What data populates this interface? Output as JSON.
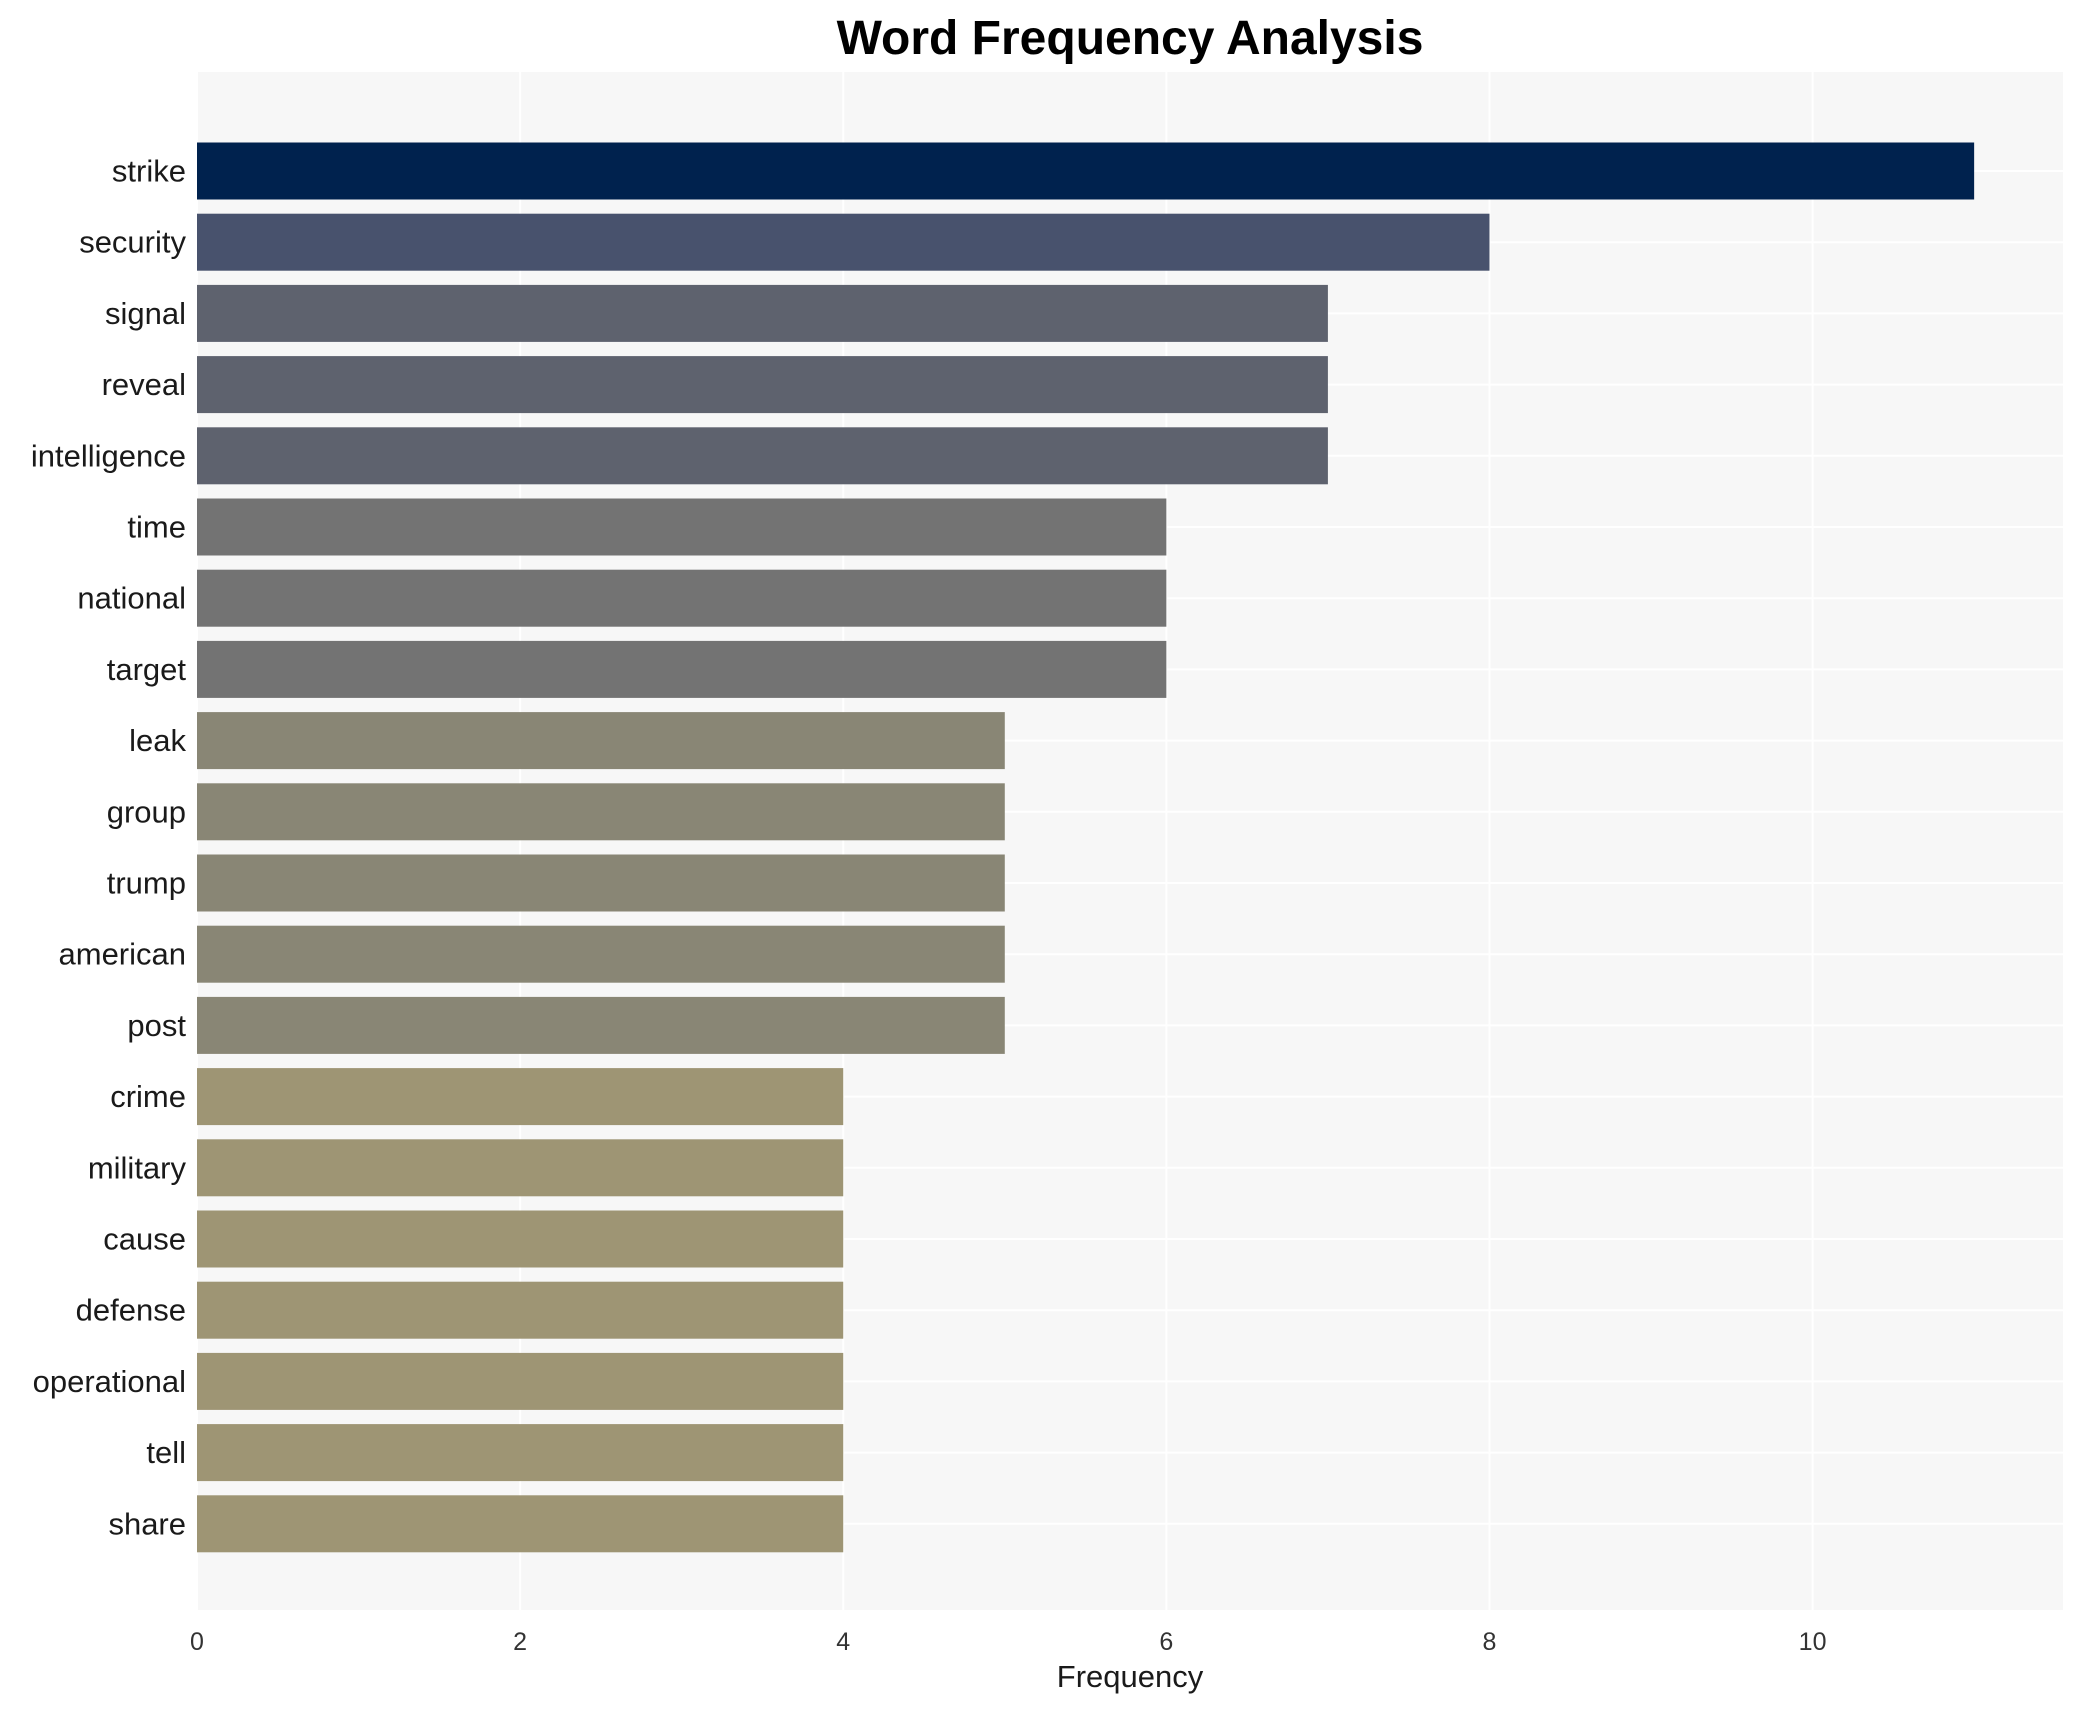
{
  "chart_data": {
    "type": "bar",
    "orientation": "horizontal",
    "title": "Word Frequency Analysis",
    "xlabel": "Frequency",
    "ylabel": "",
    "xlim": [
      0,
      11.55
    ],
    "xticks": [
      0,
      2,
      4,
      6,
      8,
      10
    ],
    "grid": true,
    "categories": [
      "strike",
      "security",
      "signal",
      "reveal",
      "intelligence",
      "time",
      "national",
      "target",
      "leak",
      "group",
      "trump",
      "american",
      "post",
      "crime",
      "military",
      "cause",
      "defense",
      "operational",
      "tell",
      "share"
    ],
    "values": [
      11,
      8,
      7,
      7,
      7,
      6,
      6,
      6,
      5,
      5,
      5,
      5,
      5,
      4,
      4,
      4,
      4,
      4,
      4,
      4
    ],
    "colors": [
      "#00224e",
      "#48526d",
      "#5e626e",
      "#5e626e",
      "#5e626e",
      "#737373",
      "#737373",
      "#737373",
      "#898675",
      "#898675",
      "#898675",
      "#898675",
      "#898675",
      "#9e9574",
      "#9e9574",
      "#9e9574",
      "#9e9574",
      "#9e9574",
      "#9e9574",
      "#9e9574"
    ],
    "plot_background": "#f7f7f7",
    "grid_color": "#ffffff"
  }
}
